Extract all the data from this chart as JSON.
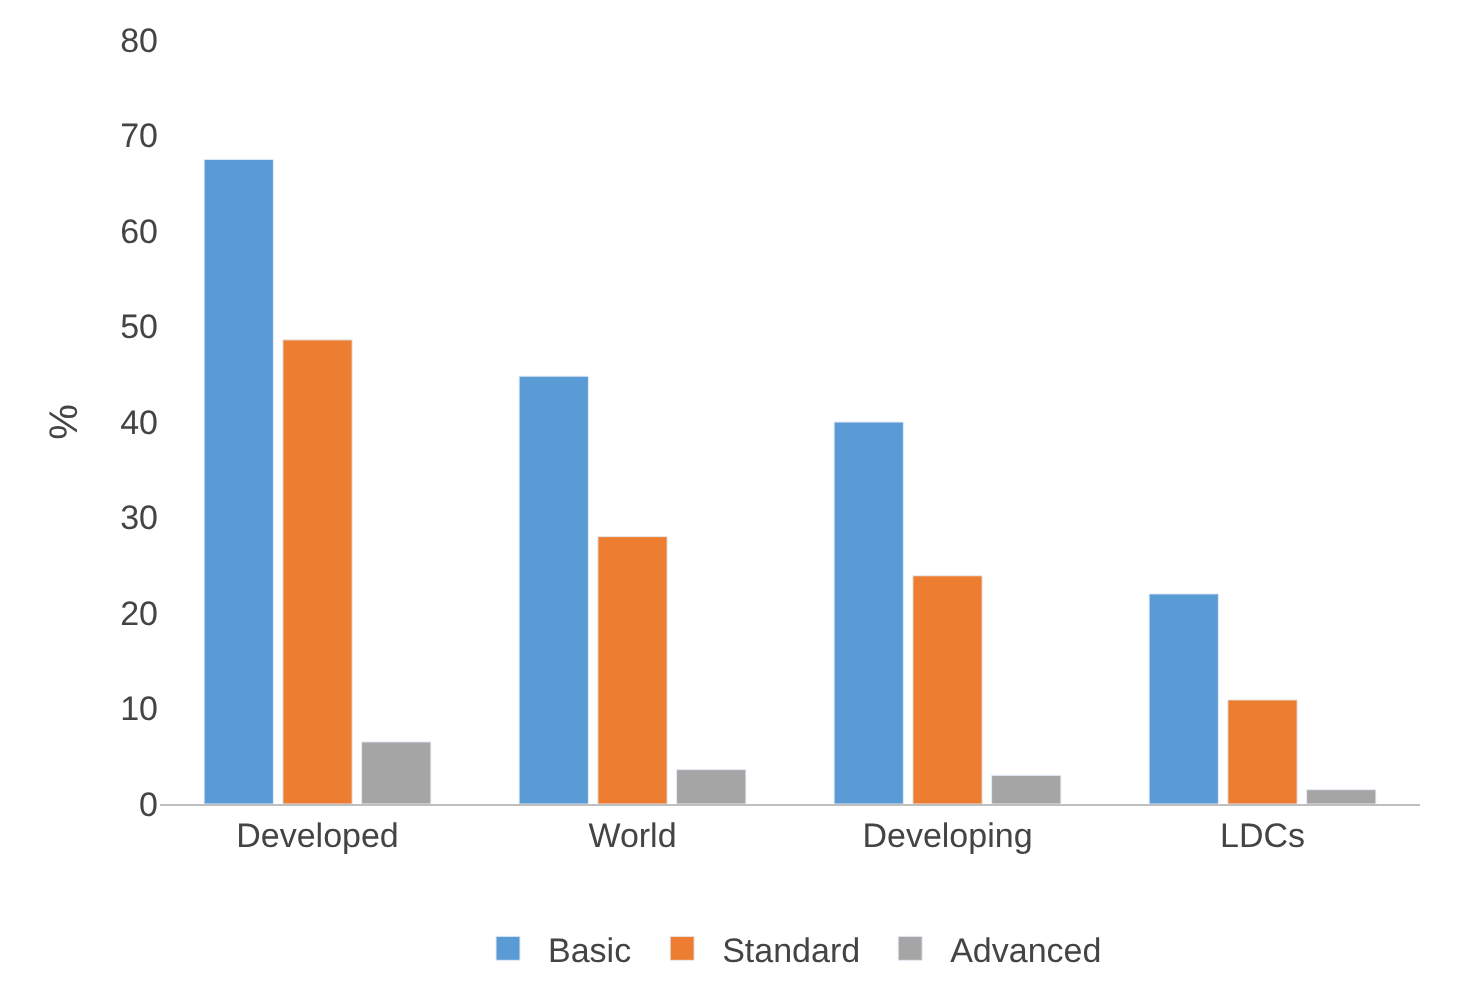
{
  "chart_data": {
    "type": "bar",
    "ylabel": "%",
    "categories": [
      "Developed",
      "World",
      "Developing",
      "LDCs"
    ],
    "series": [
      {
        "name": "Basic",
        "color": "#5b9bd5",
        "values": [
          67.5,
          44.8,
          40,
          22
        ]
      },
      {
        "name": "Standard",
        "color": "#ed7d31",
        "values": [
          48.6,
          28,
          23.9,
          10.9
        ]
      },
      {
        "name": "Advanced",
        "color": "#a5a5a5",
        "values": [
          6.5,
          3.6,
          3,
          1.5
        ]
      }
    ],
    "ylim": [
      0,
      80
    ],
    "yticks": [
      0,
      10,
      20,
      30,
      40,
      50,
      60,
      70,
      80
    ],
    "legend": "bottom"
  }
}
